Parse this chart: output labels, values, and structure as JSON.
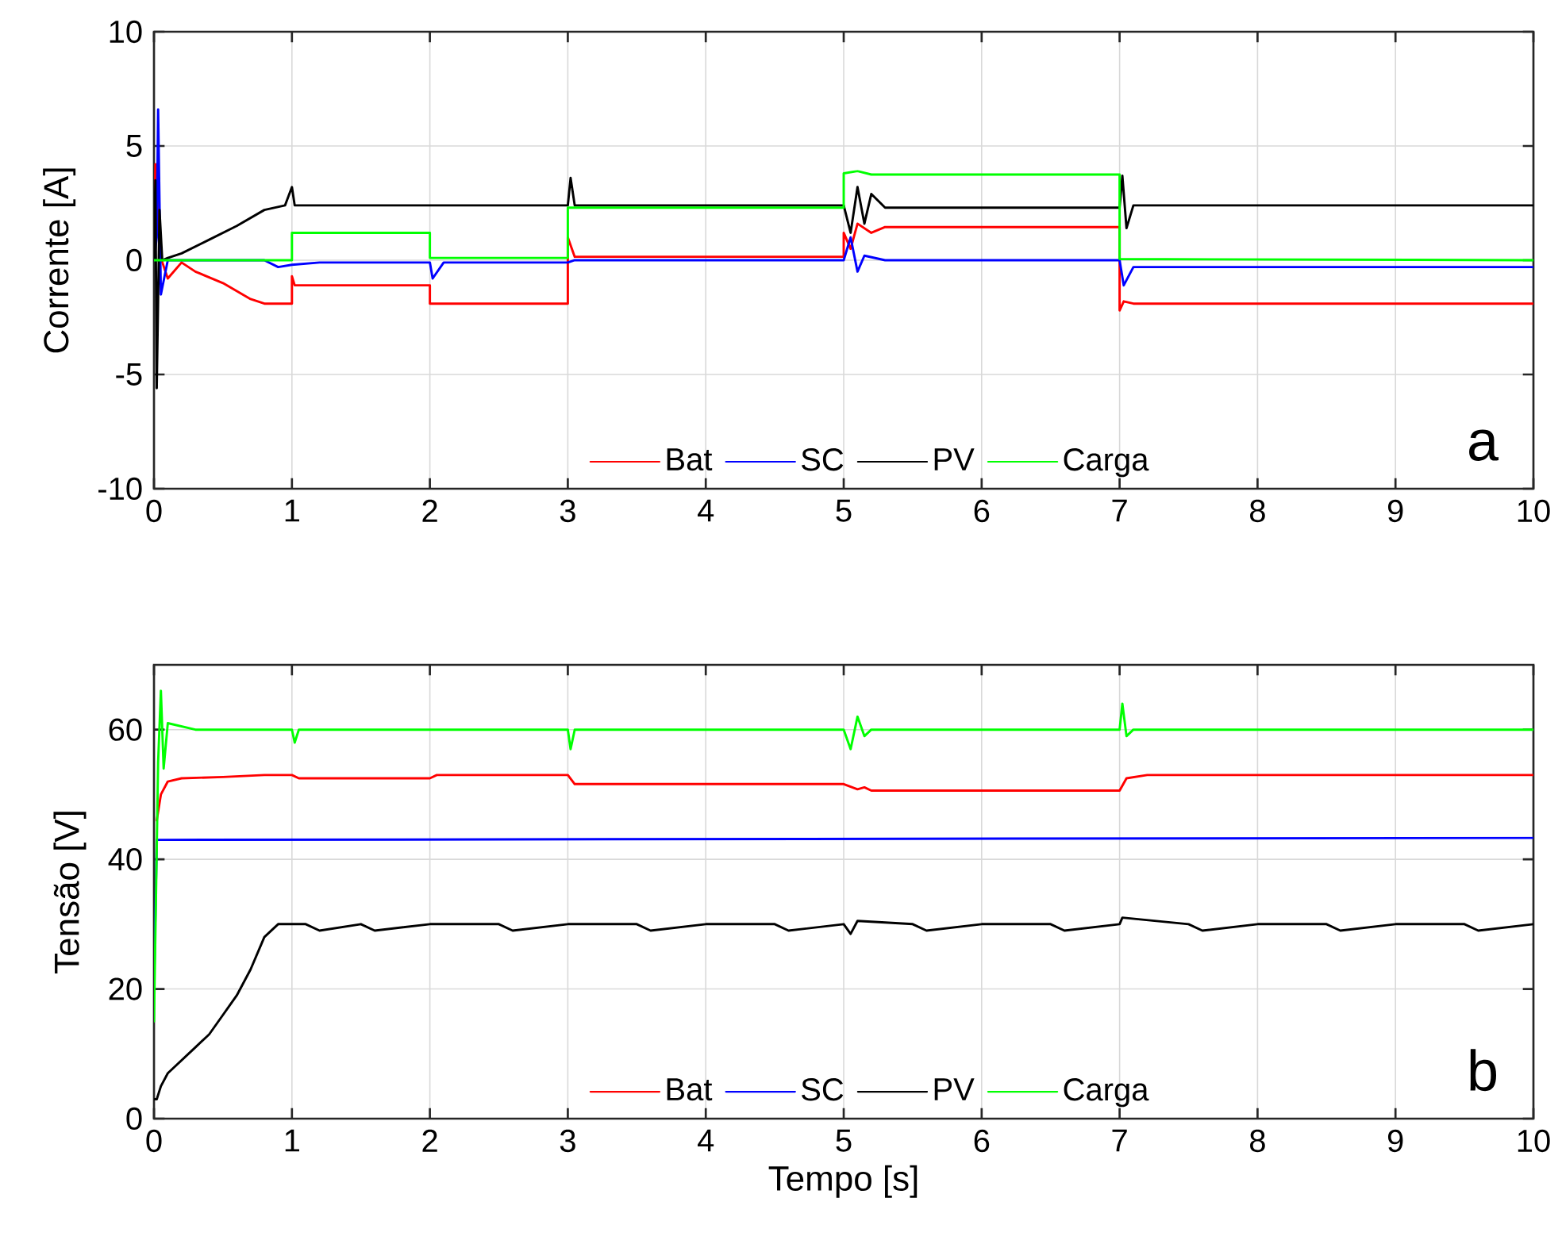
{
  "chart_data": [
    {
      "type": "line",
      "ylabel": "Corrente [A]",
      "xlim": [
        0,
        10
      ],
      "xticks": [
        0,
        1,
        2,
        3,
        4,
        5,
        6,
        7,
        8,
        9,
        10
      ],
      "ylim": [
        -10,
        10
      ],
      "yticks": [
        -10,
        -5,
        0,
        5,
        10
      ],
      "grid": true,
      "legend": "bottom",
      "annotations": [
        "a"
      ],
      "series": [
        {
          "name": "Bat",
          "color": "#ff0000",
          "x": [
            0,
            0.01,
            0.03,
            0.05,
            0.1,
            0.2,
            0.3,
            0.5,
            0.7,
            0.8,
            1.0,
            1.0,
            1.02,
            2.0,
            2.0,
            2.02,
            3.0,
            3.0,
            3.05,
            5.0,
            5.0,
            5.05,
            5.1,
            5.2,
            5.3,
            7.0,
            7.0,
            7.03,
            7.1,
            10
          ],
          "values": [
            0,
            4.2,
            null,
            0.1,
            -0.8,
            -0.1,
            -0.5,
            -1.0,
            -1.7,
            -1.9,
            -1.9,
            -0.7,
            -1.1,
            -1.1,
            -1.9,
            -1.9,
            -1.9,
            1.0,
            0.15,
            0.15,
            1.2,
            0.5,
            1.6,
            1.2,
            1.45,
            1.45,
            -2.2,
            -1.8,
            -1.9,
            -1.9
          ]
        },
        {
          "name": "SC",
          "color": "#0000ff",
          "x": [
            0,
            0.02,
            0.03,
            0.05,
            0.1,
            0.8,
            0.9,
            1.0,
            1.2,
            2.0,
            2.02,
            2.1,
            3.0,
            3.05,
            5.0,
            5.05,
            5.1,
            5.15,
            5.3,
            7.0,
            7.03,
            7.1,
            10
          ],
          "values": [
            0,
            1.0,
            6.6,
            -1.5,
            0,
            0,
            -0.3,
            -0.2,
            -0.1,
            -0.1,
            -0.8,
            -0.1,
            -0.1,
            0,
            0,
            1.0,
            -0.5,
            0.2,
            0,
            0,
            -1.1,
            -0.3,
            -0.3
          ]
        },
        {
          "name": "PV",
          "color": "#000000",
          "x": [
            0,
            0.01,
            0.02,
            0.04,
            0.06,
            0.1,
            0.2,
            0.4,
            0.6,
            0.8,
            0.95,
            1.0,
            1.02,
            2.0,
            3.0,
            3.02,
            3.05,
            5.0,
            5.05,
            5.1,
            5.15,
            5.2,
            5.3,
            7.0,
            7.02,
            7.05,
            7.1,
            10
          ],
          "values": [
            0,
            3.5,
            -5.6,
            2.2,
            0,
            0.1,
            0.3,
            0.9,
            1.5,
            2.2,
            2.4,
            3.2,
            2.4,
            2.4,
            2.4,
            3.6,
            2.4,
            2.4,
            1.2,
            3.2,
            1.6,
            2.9,
            2.3,
            2.3,
            3.7,
            1.4,
            2.4,
            2.4
          ]
        },
        {
          "name": "Carga",
          "color": "#00ff00",
          "x": [
            0,
            0.05,
            1.0,
            1.0,
            2.0,
            2.0,
            3.0,
            3.0,
            5.0,
            5.0,
            5.1,
            5.2,
            7.0,
            7.0,
            10
          ],
          "values": [
            0,
            0,
            0,
            1.2,
            1.2,
            0.1,
            0.1,
            2.3,
            2.3,
            3.8,
            3.9,
            3.75,
            3.75,
            0.05,
            0
          ]
        }
      ]
    },
    {
      "type": "line",
      "xlabel": "Tempo [s]",
      "ylabel": "Tensão [V]",
      "xlim": [
        0,
        10
      ],
      "xticks": [
        0,
        1,
        2,
        3,
        4,
        5,
        6,
        7,
        8,
        9,
        10
      ],
      "ylim": [
        0,
        70
      ],
      "yticks": [
        0,
        20,
        40,
        60
      ],
      "grid": true,
      "legend": "bottom",
      "annotations": [
        "b"
      ],
      "series": [
        {
          "name": "Bat",
          "color": "#ff0000",
          "x": [
            0.02,
            0.05,
            0.1,
            0.2,
            0.5,
            0.8,
            1.0,
            1.05,
            2.0,
            2.05,
            3.0,
            3.05,
            5.0,
            5.1,
            5.15,
            5.2,
            7.0,
            7.05,
            7.2,
            10
          ],
          "values": [
            46,
            50,
            52,
            52.5,
            52.7,
            53,
            53,
            52.5,
            52.5,
            53,
            53,
            51.6,
            51.6,
            50.8,
            51.1,
            50.6,
            50.6,
            52.5,
            53,
            53
          ]
        },
        {
          "name": "SC",
          "color": "#0000ff",
          "x": [
            0,
            0.02,
            10
          ],
          "values": [
            20,
            43,
            43.3
          ]
        },
        {
          "name": "PV",
          "color": "#000000",
          "x": [
            0,
            0.02,
            0.05,
            0.1,
            0.2,
            0.3,
            0.4,
            0.5,
            0.6,
            0.7,
            0.8,
            0.9,
            1.0,
            1.1,
            1.2,
            1.5,
            1.6,
            2,
            2.5,
            2.6,
            3,
            3.5,
            3.6,
            4,
            4.5,
            4.6,
            5,
            5.05,
            5.1,
            5.5,
            5.6,
            6,
            6.5,
            6.6,
            7,
            7.02,
            7.5,
            7.6,
            8,
            8.5,
            8.6,
            9,
            9.5,
            9.6,
            10
          ],
          "values": [
            3,
            3,
            5,
            7,
            9,
            11,
            13,
            16,
            19,
            23,
            28,
            30,
            30,
            30,
            29,
            30,
            29,
            30,
            30,
            29,
            30,
            30,
            29,
            30,
            30,
            29,
            30,
            28.5,
            30.5,
            30,
            29,
            30,
            30,
            29,
            30,
            31,
            30,
            29,
            30,
            30,
            29,
            30,
            30,
            29,
            30
          ]
        },
        {
          "name": "Carga",
          "color": "#00ff00",
          "x": [
            0,
            0.03,
            0.05,
            0.07,
            0.1,
            0.3,
            1.0,
            1.02,
            1.05,
            3.0,
            3.02,
            3.05,
            5.0,
            5.05,
            5.1,
            5.15,
            5.2,
            7.0,
            7.02,
            7.05,
            7.1,
            10
          ],
          "values": [
            15,
            55,
            66,
            54,
            61,
            60,
            60,
            58,
            60,
            60,
            57,
            60,
            60,
            57,
            62,
            59,
            60,
            60,
            64,
            59,
            60,
            60
          ]
        }
      ]
    }
  ]
}
